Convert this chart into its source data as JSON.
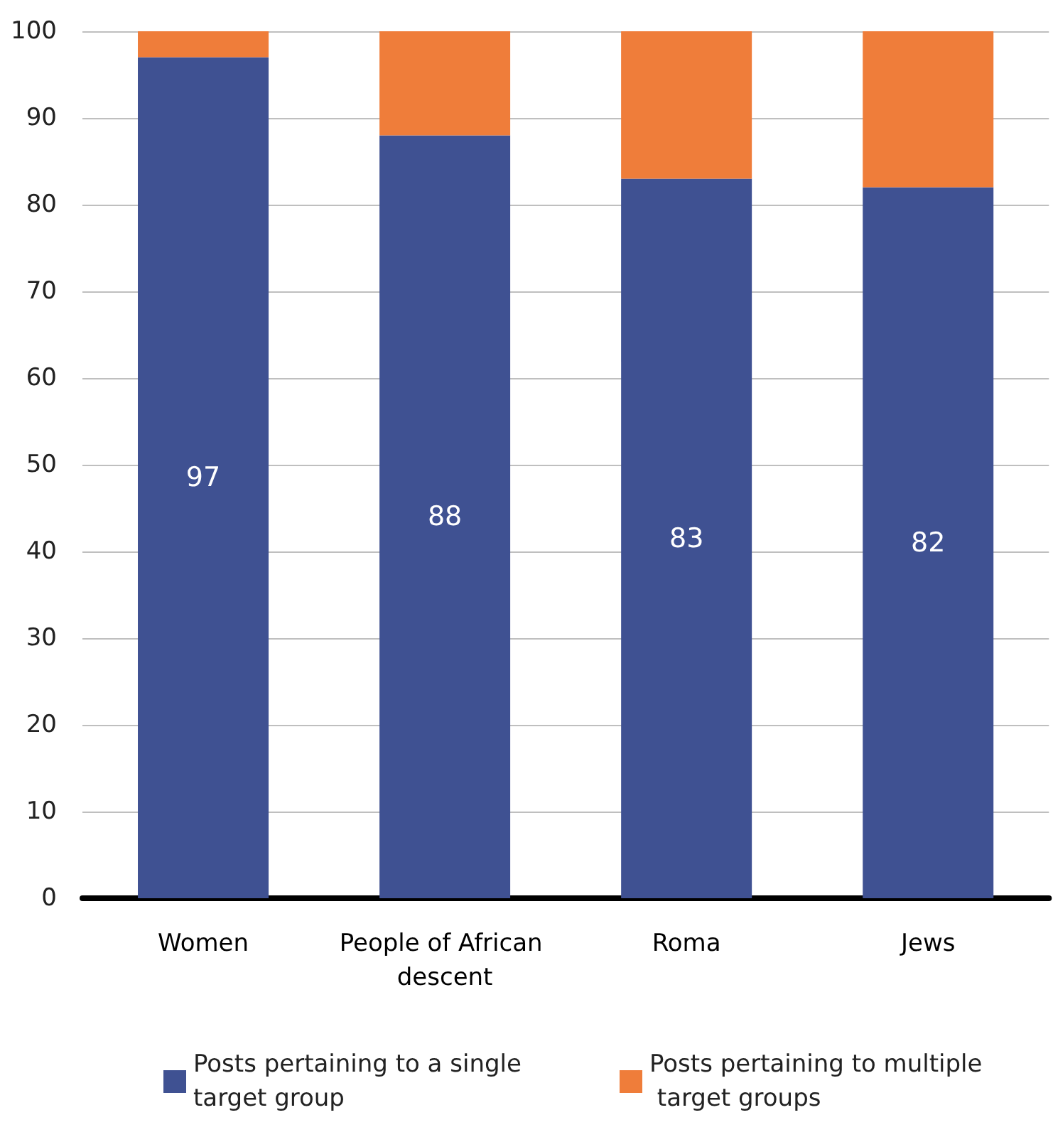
{
  "chart_data": {
    "type": "bar",
    "stacked": true,
    "categories": [
      "Women",
      "People of African descent",
      "Roma",
      "Jews"
    ],
    "series": [
      {
        "name": "Posts pertaining to a single target group",
        "color": "#3f5192",
        "values": [
          97,
          88,
          83,
          82
        ],
        "value_labels": [
          "97",
          "88",
          "83",
          "82"
        ]
      },
      {
        "name": "Posts pertaining to multiple target groups",
        "color": "#ef7d3a",
        "values": [
          3,
          12,
          17,
          18
        ]
      }
    ],
    "ylim": [
      0,
      100
    ],
    "yticks": [
      0,
      10,
      20,
      30,
      40,
      50,
      60,
      70,
      80,
      90,
      100
    ],
    "grid": "y",
    "legend": "bottom"
  }
}
